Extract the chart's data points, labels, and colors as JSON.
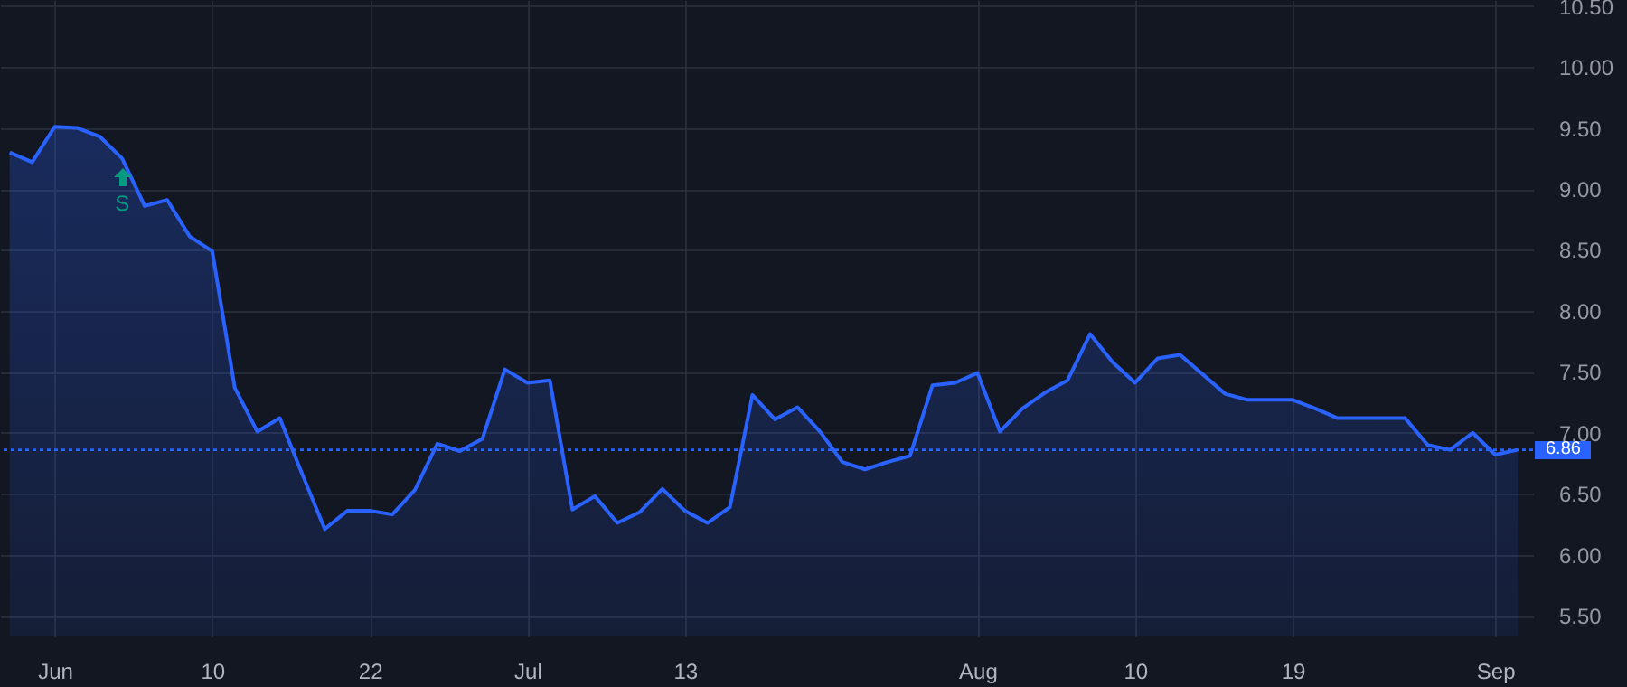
{
  "chart_data": {
    "type": "area",
    "categories": [
      null,
      null,
      "Jun",
      null,
      null,
      null,
      null,
      null,
      null,
      "10",
      null,
      null,
      null,
      null,
      null,
      null,
      "22",
      null,
      null,
      null,
      null,
      null,
      null,
      "Jul",
      null,
      null,
      null,
      null,
      null,
      null,
      "13",
      null,
      null,
      null,
      null,
      null,
      null,
      null,
      null,
      null,
      null,
      null,
      null,
      "Aug",
      null,
      null,
      null,
      null,
      null,
      null,
      "10",
      null,
      null,
      null,
      null,
      null,
      null,
      "19",
      null,
      null,
      null,
      null,
      null,
      null,
      null,
      null,
      "Sep",
      null
    ],
    "series": [
      {
        "color": "#2962ff",
        "values": [
          9.3,
          9.22,
          9.51,
          9.5,
          9.43,
          9.25,
          8.86,
          8.91,
          8.61,
          8.49,
          7.37,
          7.01,
          7.12,
          6.66,
          6.21,
          6.36,
          6.36,
          6.33,
          6.53,
          6.91,
          6.85,
          6.95,
          7.52,
          7.41,
          7.43,
          6.37,
          6.48,
          6.26,
          6.35,
          6.54,
          6.36,
          6.26,
          6.39,
          7.31,
          7.11,
          7.21,
          7.01,
          6.76,
          6.7,
          6.76,
          6.81,
          7.39,
          7.41,
          7.49,
          7.01,
          7.2,
          7.33,
          7.43,
          7.81,
          7.58,
          7.41,
          7.61,
          7.64,
          7.48,
          7.32,
          7.27,
          7.27,
          7.27,
          7.2,
          7.12,
          7.12,
          7.12,
          7.12,
          6.9,
          6.86,
          7.0,
          6.82,
          6.86
        ]
      }
    ],
    "ylim": [
      5.33,
      10.55
    ],
    "yticks": [
      {
        "value": 5.5,
        "label": "5.50"
      },
      {
        "value": 6,
        "label": "6.00"
      },
      {
        "value": 6.5,
        "label": "6.50"
      },
      {
        "value": 7,
        "label": "7.00"
      },
      {
        "value": 7.5,
        "label": "7.50"
      },
      {
        "value": 8,
        "label": "8.00"
      },
      {
        "value": 8.5,
        "label": "8.50"
      },
      {
        "value": 9,
        "label": "9.00"
      },
      {
        "value": 9.5,
        "label": "9.50"
      },
      {
        "value": 10,
        "label": "10.00"
      },
      {
        "value": 10.5,
        "label": "10.50"
      }
    ],
    "ref_lines": [
      {
        "axis": "y",
        "value": 6.86,
        "label": "6.86",
        "color": "#2962ff",
        "line_style": "dotted"
      }
    ],
    "annotations": [
      "S"
    ],
    "grid": true,
    "marker": "none",
    "line_style": "solid"
  }
}
